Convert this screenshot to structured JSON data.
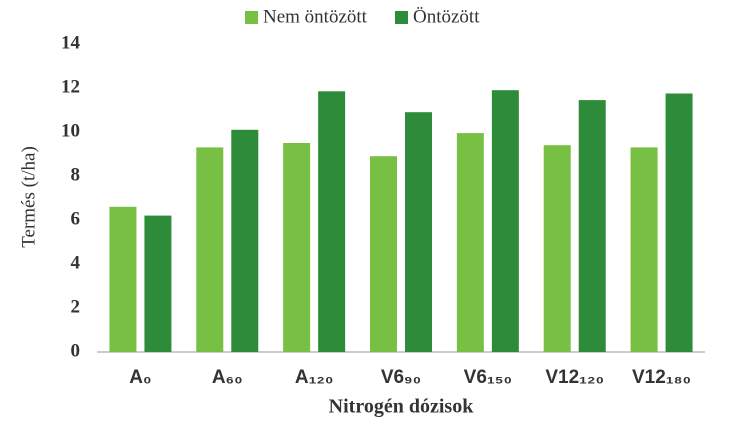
{
  "chart_data": {
    "type": "bar",
    "x_label": "Nitrogén dózisok",
    "y_label": "Termés (t/ha)",
    "categories": [
      "A₀",
      "A₆₀",
      "A₁₂₀",
      "V6₉₀",
      "V6₁₅₀",
      "V12₁₂₀",
      "V12₁₈₀"
    ],
    "series": [
      {
        "name": "Nem öntözött",
        "color": "#77c043",
        "values": [
          6.6,
          9.3,
          9.5,
          8.9,
          9.95,
          9.4,
          9.3
        ]
      },
      {
        "name": "Öntözött",
        "color": "#2e8b3a",
        "values": [
          6.2,
          10.1,
          11.85,
          10.9,
          11.9,
          11.45,
          11.75
        ]
      }
    ],
    "ylim": [
      0,
      14
    ],
    "yticks": [
      0,
      2,
      4,
      6,
      8,
      10,
      12,
      14
    ],
    "grid": false,
    "legend": "top"
  }
}
